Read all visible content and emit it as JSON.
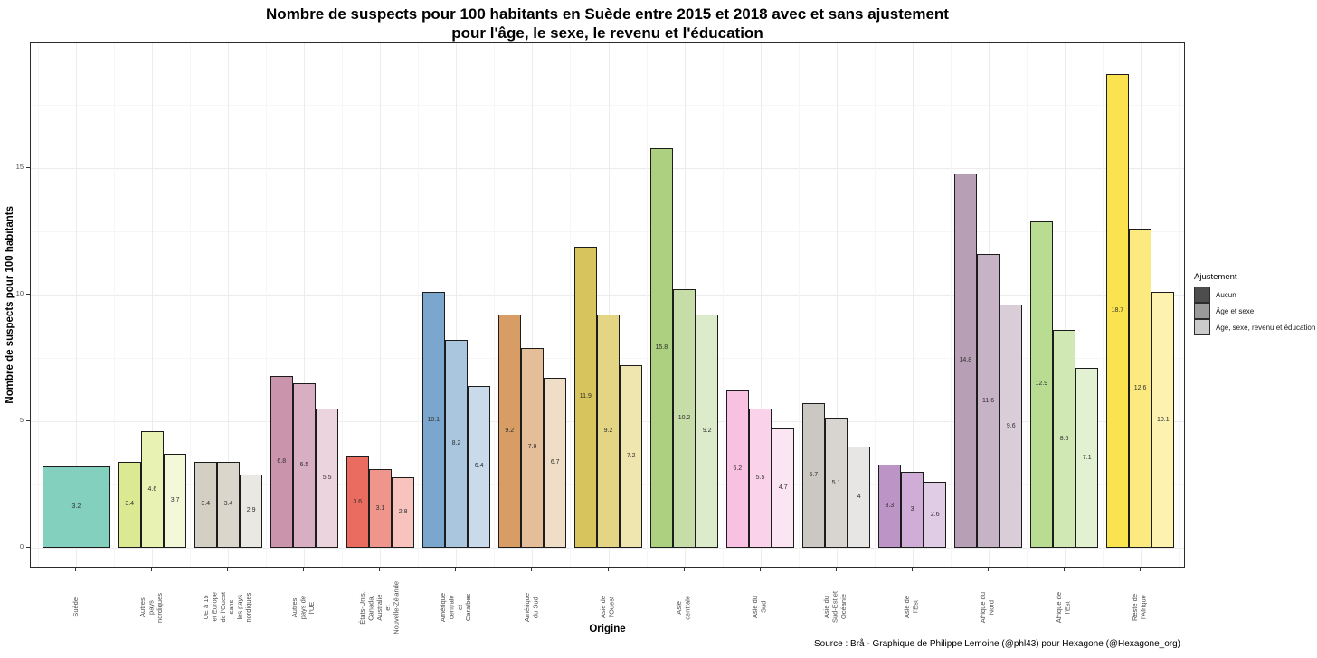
{
  "chart_data": {
    "type": "bar",
    "title": "Nombre de suspects pour 100 habitants en Suède entre 2015 et 2018 avec et sans ajustement\npour l'âge, le sexe, le revenu et l'éducation",
    "xlabel": "Origine",
    "ylabel": "Nombre de suspects pour 100 habitants",
    "source": "Source : Brå - Graphique de Philippe Lemoine (@phl43) pour Hexagone (@Hexagone_org)",
    "ylim": [
      0,
      19.8
    ],
    "yticks": [
      0,
      5,
      10,
      15
    ],
    "yticks_minor": [
      2.5,
      7.5,
      12.5,
      17.5
    ],
    "grid": true,
    "legend_position": "right",
    "legend": {
      "title": "Ajustement",
      "entries": [
        {
          "label": "Aucun",
          "color": "#4d4d4d"
        },
        {
          "label": "Âge et sexe",
          "color": "#9a9a9a"
        },
        {
          "label": "Âge, sexe, revenu et éducation",
          "color": "#cbcbcb"
        }
      ]
    },
    "groups": [
      {
        "label_lines": [
          "Suède"
        ],
        "bars": [
          {
            "label": "3.2",
            "value": 3.2,
            "color": "#82d0bd"
          }
        ]
      },
      {
        "label_lines": [
          "Autres",
          "pays",
          "nordiques"
        ],
        "bars": [
          {
            "label": "3.4",
            "value": 3.4,
            "color": "#dbe993"
          },
          {
            "label": "4.6",
            "value": 4.6,
            "color": "#e7f2b3"
          },
          {
            "label": "3.7",
            "value": 3.7,
            "color": "#f2f8d8"
          }
        ]
      },
      {
        "label_lines": [
          "UE à 15",
          "et Europe",
          "de l'Ouest",
          "sans",
          "les pays",
          "nordiques"
        ],
        "bars": [
          {
            "label": "3.4",
            "value": 3.4,
            "color": "#d3cfc2"
          },
          {
            "label": "3.4",
            "value": 3.4,
            "color": "#dad6cb"
          },
          {
            "label": "2.9",
            "value": 2.9,
            "color": "#eae8e2"
          }
        ]
      },
      {
        "label_lines": [
          "Autres",
          "pays de",
          "l'UE"
        ],
        "bars": [
          {
            "label": "6.8",
            "value": 6.8,
            "color": "#ca95ac"
          },
          {
            "label": "6.5",
            "value": 6.5,
            "color": "#d8aec3"
          },
          {
            "label": "5.5",
            "value": 5.5,
            "color": "#ecd4df"
          }
        ]
      },
      {
        "label_lines": [
          "États-Unis,",
          "Canada,",
          "Australie",
          "et",
          "Nouvelle-Zélande"
        ],
        "bars": [
          {
            "label": "3.6",
            "value": 3.6,
            "color": "#ea6b5f"
          },
          {
            "label": "3.1",
            "value": 3.1,
            "color": "#f0958b"
          },
          {
            "label": "2.8",
            "value": 2.8,
            "color": "#f8c3bd"
          }
        ]
      },
      {
        "label_lines": [
          "Amérique",
          "centrale",
          "et",
          "Caraïbes"
        ],
        "bars": [
          {
            "label": "10.1",
            "value": 10.1,
            "color": "#7ba6cd"
          },
          {
            "label": "8.2",
            "value": 8.2,
            "color": "#a9c6de"
          },
          {
            "label": "6.4",
            "value": 6.4,
            "color": "#c9daea"
          }
        ]
      },
      {
        "label_lines": [
          "Amérique",
          "du Sud"
        ],
        "bars": [
          {
            "label": "9.2",
            "value": 9.2,
            "color": "#d79d65"
          },
          {
            "label": "7.9",
            "value": 7.9,
            "color": "#e3be99"
          },
          {
            "label": "6.7",
            "value": 6.7,
            "color": "#efddc7"
          }
        ]
      },
      {
        "label_lines": [
          "Asie de",
          "l'Ouest"
        ],
        "bars": [
          {
            "label": "11.9",
            "value": 11.9,
            "color": "#d8c45c"
          },
          {
            "label": "9.2",
            "value": 9.2,
            "color": "#e3d584"
          },
          {
            "label": "7.2",
            "value": 7.2,
            "color": "#efe5ae"
          }
        ]
      },
      {
        "label_lines": [
          "Asie",
          "centrale"
        ],
        "bars": [
          {
            "label": "15.8",
            "value": 15.8,
            "color": "#accf80"
          },
          {
            "label": "10.2",
            "value": 10.2,
            "color": "#c6dda7"
          },
          {
            "label": "9.2",
            "value": 9.2,
            "color": "#dcebc9"
          }
        ]
      },
      {
        "label_lines": [
          "Asie du",
          "Sud"
        ],
        "bars": [
          {
            "label": "6.2",
            "value": 6.2,
            "color": "#f8c0e1"
          },
          {
            "label": "5.5",
            "value": 5.5,
            "color": "#fad3eb"
          },
          {
            "label": "4.7",
            "value": 4.7,
            "color": "#fce5f3"
          }
        ]
      },
      {
        "label_lines": [
          "Asie du",
          "Sud-Est et",
          "Océanie"
        ],
        "bars": [
          {
            "label": "5.7",
            "value": 5.7,
            "color": "#cbc7c3"
          },
          {
            "label": "5.1",
            "value": 5.1,
            "color": "#d8d5d1"
          },
          {
            "label": "4",
            "value": 4,
            "color": "#e8e6e4"
          }
        ]
      },
      {
        "label_lines": [
          "Asie de",
          "l'Est"
        ],
        "bars": [
          {
            "label": "3.3",
            "value": 3.3,
            "color": "#bd94c6"
          },
          {
            "label": "3",
            "value": 3,
            "color": "#cfadd6"
          },
          {
            "label": "2.6",
            "value": 2.6,
            "color": "#e1cce6"
          }
        ]
      },
      {
        "label_lines": [
          "Afrique du",
          "Nord"
        ],
        "bars": [
          {
            "label": "14.8",
            "value": 14.8,
            "color": "#b79fb6"
          },
          {
            "label": "11.6",
            "value": 11.6,
            "color": "#c7b3c6"
          },
          {
            "label": "9.6",
            "value": 9.6,
            "color": "#d9cdd8"
          }
        ]
      },
      {
        "label_lines": [
          "Afrique de",
          "l'Est"
        ],
        "bars": [
          {
            "label": "12.9",
            "value": 12.9,
            "color": "#b9dc93"
          },
          {
            "label": "8.6",
            "value": 8.6,
            "color": "#cfe8b4"
          },
          {
            "label": "7.1",
            "value": 7.1,
            "color": "#e1f1d2"
          }
        ]
      },
      {
        "label_lines": [
          "Reste de",
          "l'Afrique"
        ],
        "bars": [
          {
            "label": "18.7",
            "value": 18.7,
            "color": "#fae34f"
          },
          {
            "label": "12.6",
            "value": 12.6,
            "color": "#fcea81"
          },
          {
            "label": "10.1",
            "value": 10.1,
            "color": "#fdf2af"
          }
        ]
      }
    ]
  }
}
